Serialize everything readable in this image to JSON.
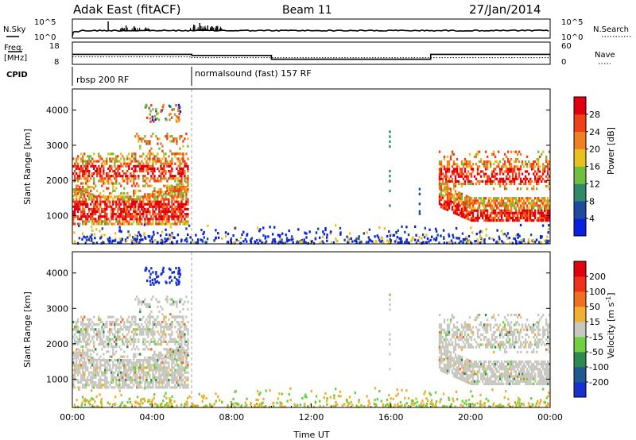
{
  "header": {
    "station": "Adak East (fitACF)",
    "beam": "Beam 11",
    "date": "27/Jan/2014"
  },
  "noise_panel": {
    "left_label": "N.Sky",
    "right_label": "N.Search",
    "left_ticks": [
      "10^5",
      "10^0"
    ],
    "right_ticks": [
      "10^5",
      "10^0"
    ]
  },
  "freq_panel": {
    "left_label_1": "Freq.",
    "left_label_2": "[MHz]",
    "right_label": "Nave",
    "left_ticks": [
      "18",
      "8"
    ],
    "right_ticks": [
      "60",
      "0"
    ],
    "freq_steps": [
      [
        0,
        12.5
      ],
      [
        6,
        12.0
      ],
      [
        10,
        10.3
      ],
      [
        18,
        12.5
      ],
      [
        24,
        12.5
      ]
    ],
    "nave_steps": [
      [
        0,
        20
      ],
      [
        6,
        18
      ],
      [
        24,
        18
      ]
    ]
  },
  "cpid": {
    "label": "CPID",
    "segments": [
      {
        "start_hour": 0,
        "text": "rbsp 200 RF"
      },
      {
        "start_hour": 6,
        "text": "normalsound (fast) 157 RF"
      }
    ]
  },
  "chart_data": [
    {
      "type": "heatmap",
      "quantity": "power",
      "ylabel": "Slant Range [km]",
      "xlim": [
        0,
        24
      ],
      "ylim": [
        200,
        4600
      ],
      "y_ticks": [
        "1000",
        "2000",
        "3000",
        "4000"
      ],
      "y_tick_values": [
        1000,
        2000,
        3000,
        4000
      ],
      "colorbar": {
        "label": "Power [dB]",
        "ticks": [
          "4",
          "8",
          "12",
          "16",
          "20",
          "24",
          "28"
        ],
        "colors": [
          "#0a20e0",
          "#1e4aa0",
          "#2e8a6a",
          "#70c040",
          "#e8c020",
          "#f08020",
          "#f04018",
          "#e00010"
        ]
      }
    },
    {
      "type": "heatmap",
      "quantity": "velocity",
      "ylabel": "Slant Range [km]",
      "xlabel": "Time UT",
      "xlim": [
        0,
        24
      ],
      "ylim": [
        200,
        4600
      ],
      "x_ticks": [
        "00:00",
        "04:00",
        "08:00",
        "12:00",
        "16:00",
        "20:00",
        "00:00"
      ],
      "x_tick_values": [
        0,
        4,
        8,
        12,
        16,
        20,
        24
      ],
      "y_ticks": [
        "1000",
        "2000",
        "3000",
        "4000"
      ],
      "y_tick_values": [
        1000,
        2000,
        3000,
        4000
      ],
      "colorbar": {
        "label": "Velocity [m s-1]",
        "ticks": [
          "200",
          "100",
          "50",
          "15",
          "-15",
          "-50",
          "-100",
          "-200"
        ],
        "colors": [
          "#1830d0",
          "#205a90",
          "#2f8a50",
          "#70d040",
          "#c8c8c0",
          "#f0b030",
          "#f07020",
          "#f03018",
          "#e00010"
        ]
      }
    }
  ]
}
